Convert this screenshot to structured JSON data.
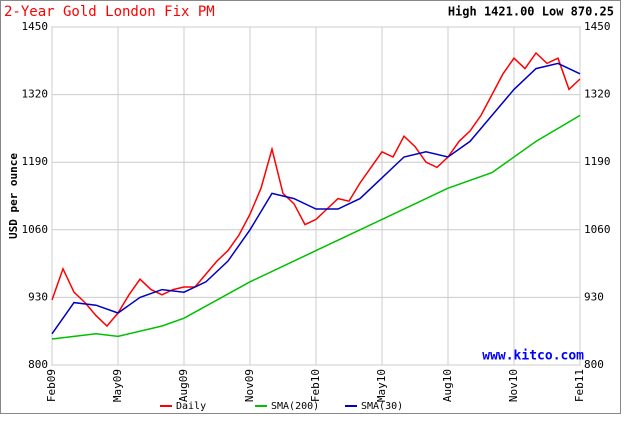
{
  "chart_data": {
    "type": "line",
    "title": "2-Year Gold London Fix PM",
    "subtitle": "High 1421.00 Low 870.25",
    "y_label": "USD per ounce",
    "watermark": "www.kitco.com",
    "xlim": [
      0,
      24
    ],
    "xticks": [
      {
        "value": 0,
        "label": "Feb09"
      },
      {
        "value": 3,
        "label": "May09"
      },
      {
        "value": 6,
        "label": "Aug09"
      },
      {
        "value": 9,
        "label": "Nov09"
      },
      {
        "value": 12,
        "label": "Feb10"
      },
      {
        "value": 15,
        "label": "May10"
      },
      {
        "value": 18,
        "label": "Aug10"
      },
      {
        "value": 21,
        "label": "Nov10"
      },
      {
        "value": 24,
        "label": "Feb11"
      }
    ],
    "ylim": [
      800,
      1450
    ],
    "yticks": [
      800,
      930,
      1060,
      1190,
      1320,
      1450
    ],
    "grid": true,
    "series": [
      {
        "name": "Daily",
        "color": "#ff0000",
        "x": [
          0,
          0.5,
          1,
          1.5,
          2,
          2.5,
          3,
          3.5,
          4,
          4.5,
          5,
          5.5,
          6,
          6.5,
          7,
          7.5,
          8,
          8.5,
          9,
          9.5,
          10,
          10.5,
          11,
          11.5,
          12,
          12.5,
          13,
          13.5,
          14,
          14.5,
          15,
          15.5,
          16,
          16.5,
          17,
          17.5,
          18,
          18.5,
          19,
          19.5,
          20,
          20.5,
          21,
          21.5,
          22,
          22.5,
          23,
          23.5,
          24
        ],
        "values": [
          925,
          985,
          940,
          920,
          895,
          875,
          900,
          935,
          965,
          945,
          935,
          945,
          950,
          950,
          975,
          1000,
          1020,
          1050,
          1090,
          1140,
          1215,
          1130,
          1110,
          1070,
          1080,
          1100,
          1120,
          1115,
          1150,
          1180,
          1210,
          1200,
          1240,
          1220,
          1190,
          1180,
          1200,
          1230,
          1250,
          1280,
          1320,
          1360,
          1390,
          1370,
          1400,
          1380,
          1390,
          1330,
          1350
        ]
      },
      {
        "name": "SMA(200)",
        "color": "#00c000",
        "x": [
          0,
          2,
          3,
          5,
          6,
          9,
          12,
          15,
          18,
          20,
          22,
          24
        ],
        "values": [
          850,
          860,
          855,
          875,
          890,
          960,
          1020,
          1080,
          1140,
          1170,
          1230,
          1280
        ]
      },
      {
        "name": "SMA(30)",
        "color": "#0000c0",
        "x": [
          0,
          1,
          2,
          3,
          4,
          5,
          6,
          7,
          8,
          9,
          10,
          11,
          12,
          13,
          14,
          15,
          16,
          17,
          18,
          19,
          20,
          21,
          22,
          23,
          24
        ],
        "values": [
          860,
          920,
          915,
          900,
          930,
          945,
          940,
          960,
          1000,
          1060,
          1130,
          1120,
          1100,
          1100,
          1120,
          1160,
          1200,
          1210,
          1200,
          1230,
          1280,
          1330,
          1370,
          1380,
          1360
        ]
      }
    ]
  }
}
